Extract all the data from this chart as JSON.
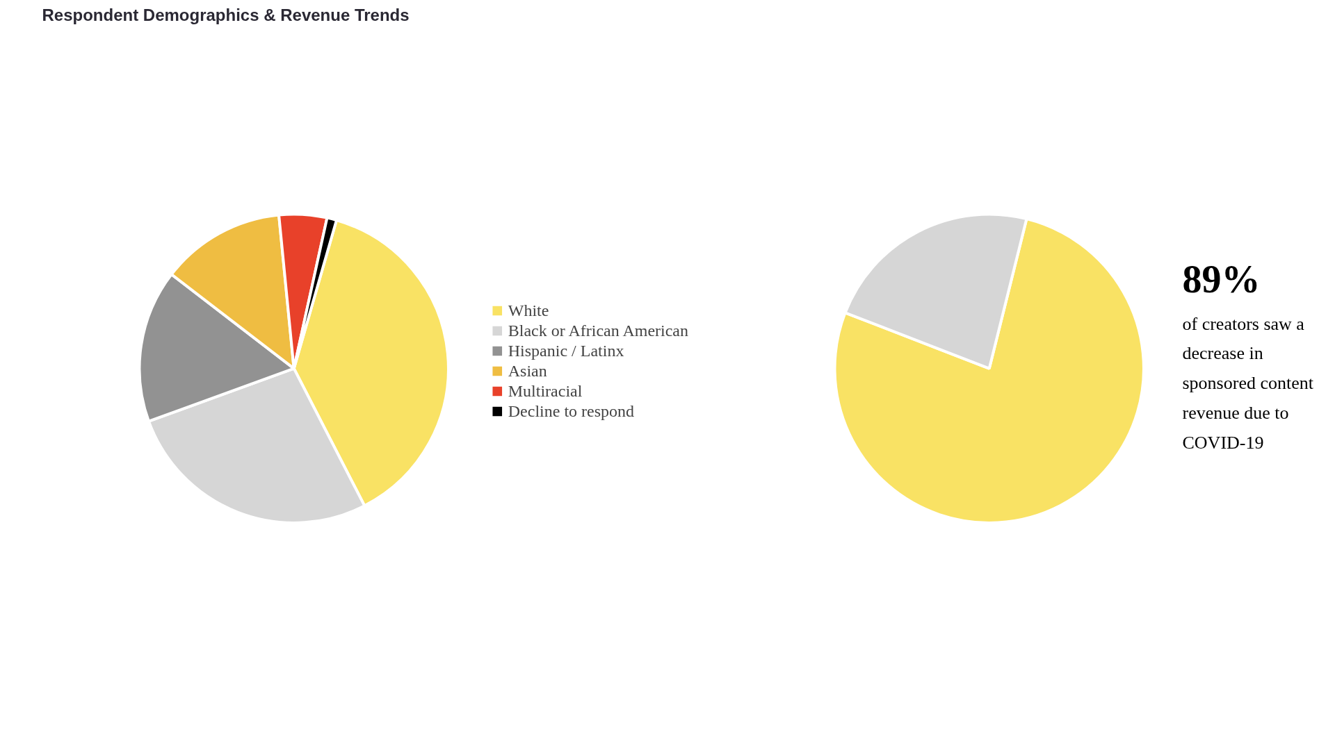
{
  "chart_data": [
    {
      "type": "pie",
      "title": "Respondent Demographics & Revenue Trends",
      "categories": [
        "White",
        "Black or African American",
        "Hispanic / Latinx",
        "Asian",
        "Multiracial",
        "Decline to respond"
      ],
      "values": [
        38,
        27,
        16,
        13,
        5,
        1
      ],
      "colors": [
        "#f9e264",
        "#d6d6d6",
        "#929292",
        "#efbd42",
        "#e8412a",
        "#000000"
      ],
      "legend": "right"
    },
    {
      "type": "pie",
      "categories": [
        null,
        null
      ],
      "values": [
        77,
        23
      ],
      "colors": [
        "#f9e264",
        "#d6d6d6"
      ],
      "annotations": [
        "89%",
        "of creators saw a decrease in sponsored content revenue due to COVID-19"
      ]
    }
  ]
}
